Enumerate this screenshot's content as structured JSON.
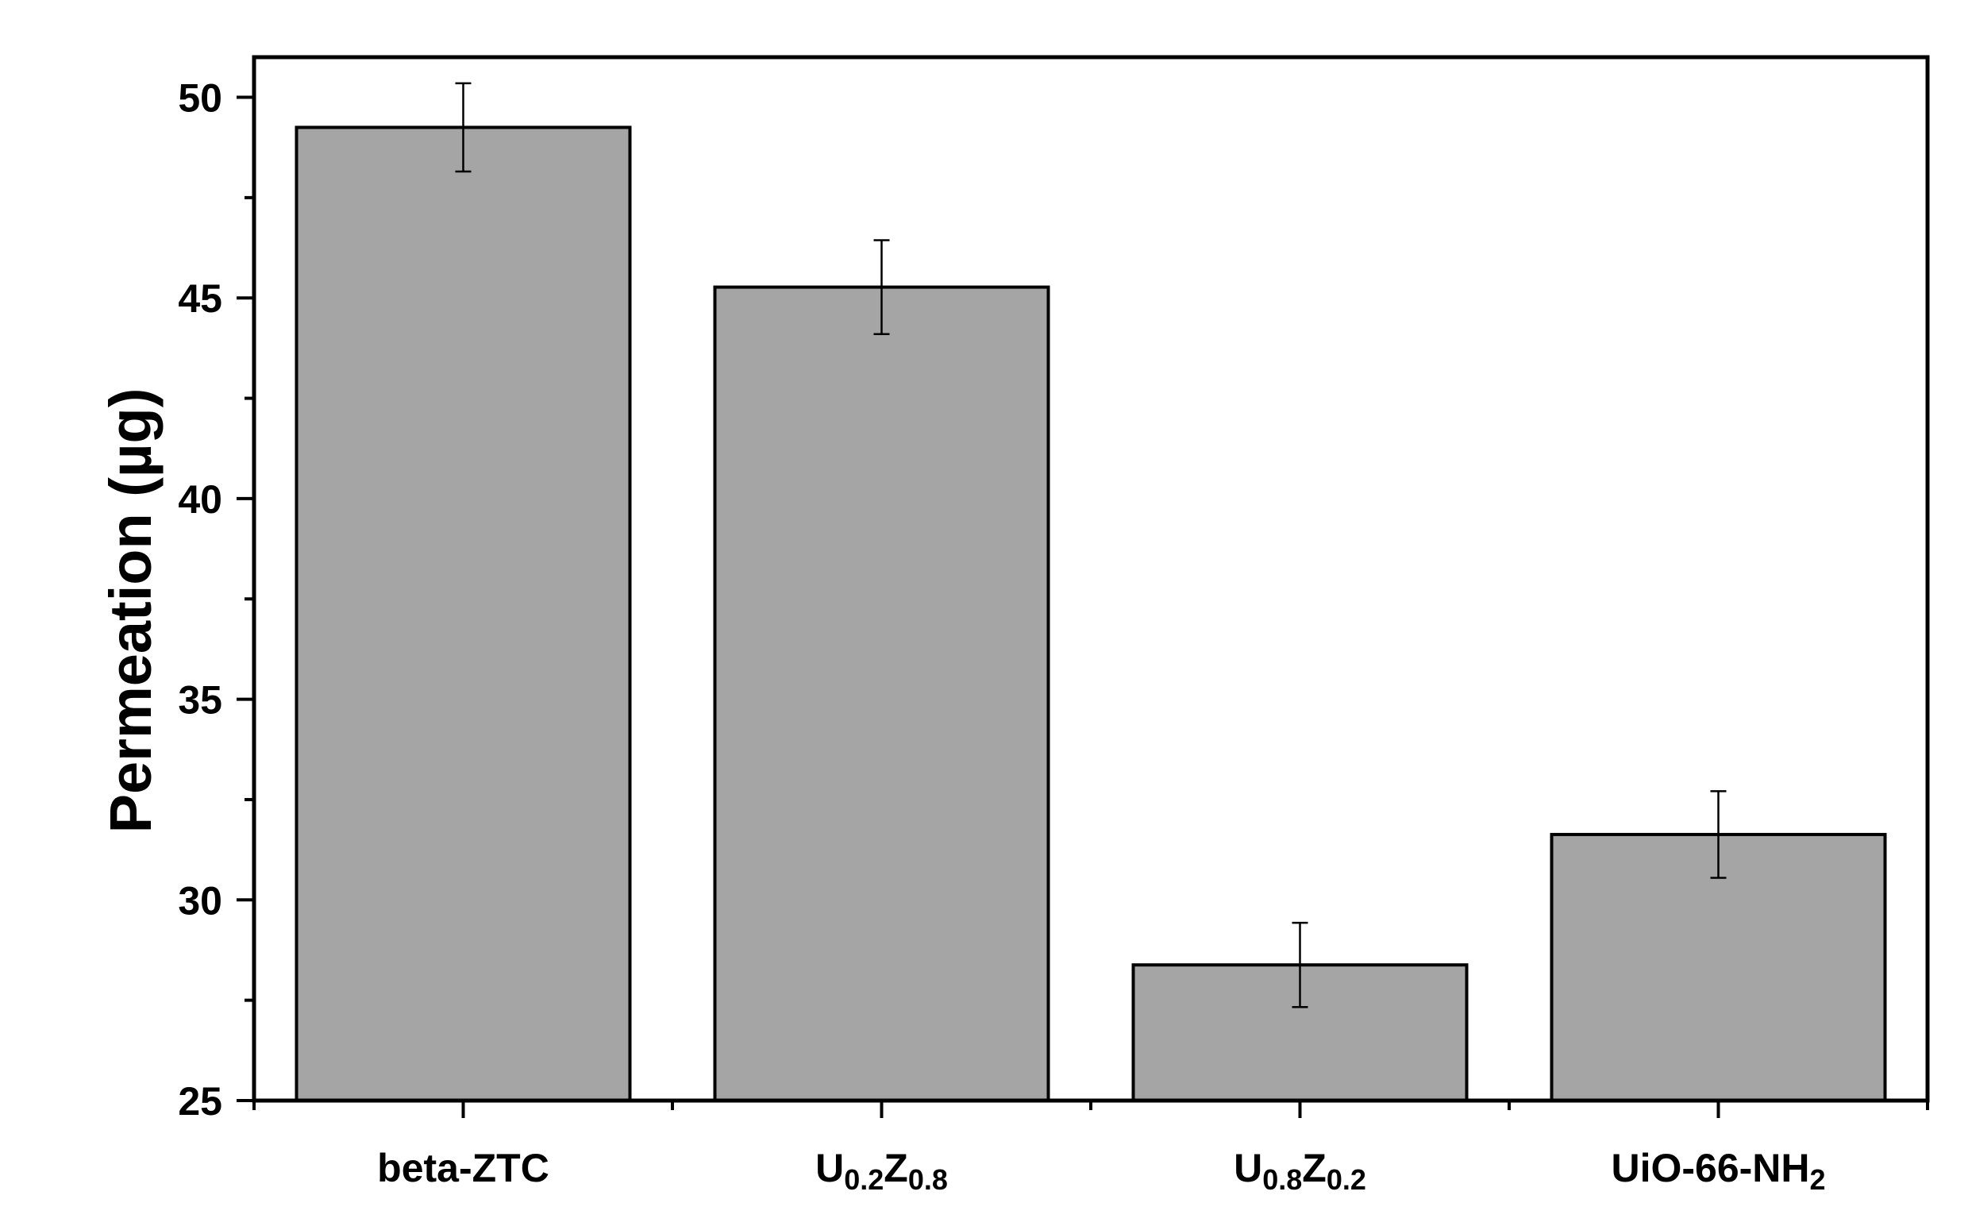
{
  "chart_data": {
    "type": "bar",
    "title": "",
    "xlabel": "",
    "ylabel": "Permeation (µg)",
    "ylim": [
      25,
      51
    ],
    "yticks": [
      25,
      30,
      35,
      40,
      45,
      50
    ],
    "grid": false,
    "bar_color": "#a5a5a5",
    "edge_color": "#000000",
    "categories": [
      {
        "base": "beta-ZTC",
        "parts": [
          {
            "t": "beta-ZTC",
            "sub": false
          }
        ]
      },
      {
        "base": "U0.2Z0.8",
        "parts": [
          {
            "t": "U",
            "sub": false
          },
          {
            "t": "0.2",
            "sub": true
          },
          {
            "t": "Z",
            "sub": false
          },
          {
            "t": "0.8",
            "sub": true
          }
        ]
      },
      {
        "base": "U0.8Z0.2",
        "parts": [
          {
            "t": "U",
            "sub": false
          },
          {
            "t": "0.8",
            "sub": true
          },
          {
            "t": "Z",
            "sub": false
          },
          {
            "t": "0.2",
            "sub": true
          }
        ]
      },
      {
        "base": "UiO-66-NH2",
        "parts": [
          {
            "t": "UiO-66-NH",
            "sub": false
          },
          {
            "t": "2",
            "sub": true
          }
        ]
      }
    ],
    "values": [
      49.25,
      45.27,
      28.38,
      31.63
    ],
    "errors": [
      1.1,
      1.17,
      1.05,
      1.08
    ]
  }
}
